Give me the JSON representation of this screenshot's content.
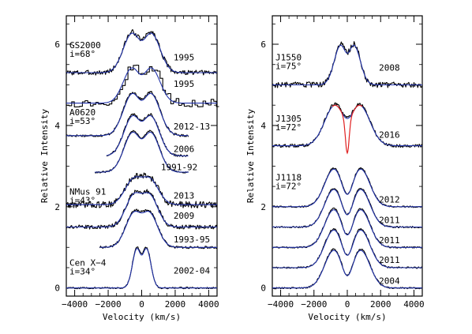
{
  "chart_data": [
    {
      "type": "line",
      "panel": "left",
      "xlabel": "Velocity (km/s)",
      "ylabel": "Relative Intensity",
      "xlim": [
        -4500,
        4500
      ],
      "ylim": [
        -0.2,
        6.7
      ],
      "xticks": [
        -4000,
        -2000,
        0,
        2000,
        4000
      ],
      "xtick_labels": [
        "−4000",
        "−2000",
        "0",
        "2000",
        "4000"
      ],
      "yticks": [
        0,
        2,
        4,
        6
      ],
      "ytick_labels": [
        "0",
        "2",
        "4",
        "6"
      ],
      "objects": [
        {
          "name": "GS2000",
          "incl": "i=68°",
          "label_y": 5.9
        },
        {
          "name": "A0620",
          "incl": "i=53°",
          "label_y": 4.25
        },
        {
          "name": "NMus 91",
          "incl": "i=43°",
          "label_y": 2.3
        },
        {
          "name": "Cen X−4",
          "incl": "i=34°",
          "label_y": 0.55
        }
      ],
      "spectra": [
        {
          "epoch": "1995",
          "base": 5.3,
          "kind": "double",
          "peak_v": 600,
          "width": 520,
          "amp": 0.95,
          "dip": 0.72,
          "noise": 0.06,
          "xrange": [
            -4500,
            4500
          ],
          "label_x": 1900,
          "label_y": 5.6
        },
        {
          "epoch": "1995",
          "base": 4.55,
          "kind": "double",
          "peak_v": 600,
          "width": 520,
          "amp": 0.85,
          "dip": 0.7,
          "noise": 0.1,
          "step": true,
          "xrange": [
            -4500,
            4500
          ],
          "label_x": 1900,
          "label_y": 4.95
        },
        {
          "epoch": "2012-13",
          "base": 3.75,
          "kind": "double",
          "peak_v": 580,
          "width": 540,
          "amp": 1.0,
          "dip": 0.62,
          "noise": 0.03,
          "xrange": [
            -4500,
            2800
          ],
          "label_x": 1900,
          "label_y": 3.9
        },
        {
          "epoch": "2006",
          "base": 3.25,
          "kind": "double",
          "peak_v": 560,
          "width": 520,
          "amp": 0.95,
          "dip": 0.68,
          "noise": 0.03,
          "xrange": [
            -2100,
            2800
          ],
          "label_x": 1900,
          "label_y": 3.35
        },
        {
          "epoch": "1991-92",
          "base": 2.85,
          "kind": "double",
          "peak_v": 560,
          "width": 520,
          "amp": 0.95,
          "dip": 0.62,
          "noise": 0.02,
          "xrange": [
            -2800,
            2800
          ],
          "label_x": 1150,
          "label_y": 2.9
        },
        {
          "epoch": "2013",
          "base": 2.05,
          "kind": "double",
          "peak_v": 500,
          "width": 520,
          "amp": 0.6,
          "dip": 0.85,
          "noise": 0.08,
          "xrange": [
            -4500,
            4500
          ],
          "label_x": 1900,
          "label_y": 2.2
        },
        {
          "epoch": "2009",
          "base": 1.5,
          "kind": "double",
          "peak_v": 480,
          "width": 500,
          "amp": 0.75,
          "dip": 0.8,
          "noise": 0.05,
          "xrange": [
            -4500,
            4500
          ],
          "label_x": 1900,
          "label_y": 1.7
        },
        {
          "epoch": "1993-95",
          "base": 1.0,
          "kind": "double",
          "peak_v": 480,
          "width": 500,
          "amp": 0.8,
          "dip": 0.72,
          "noise": 0.03,
          "xrange": [
            -2500,
            4500
          ],
          "label_x": 1900,
          "label_y": 1.12
        },
        {
          "epoch": "2002-04",
          "base": 0.0,
          "kind": "double",
          "peak_v": 300,
          "width": 260,
          "amp": 0.95,
          "dip": 0.75,
          "noise": 0.02,
          "xrange": [
            -4500,
            4500
          ],
          "label_x": 1900,
          "label_y": 0.35
        }
      ]
    },
    {
      "type": "line",
      "panel": "right",
      "xlabel": "Velocity (km/s)",
      "ylabel": "Relative Intensity",
      "xlim": [
        -4500,
        4500
      ],
      "ylim": [
        -0.2,
        6.7
      ],
      "xticks": [
        -4000,
        -2000,
        0,
        2000,
        4000
      ],
      "xtick_labels": [
        "−4000",
        "−2000",
        "0",
        "2000",
        "4000"
      ],
      "yticks": [
        0,
        2,
        4,
        6
      ],
      "ytick_labels": [
        "0",
        "2",
        "4",
        "6"
      ],
      "objects": [
        {
          "name": "J1550",
          "incl": "i=75°",
          "label_y": 5.6
        },
        {
          "name": "J1305",
          "incl": "i=72°",
          "label_y": 4.1
        },
        {
          "name": "J1118",
          "incl": "i=72°",
          "label_y": 2.65
        }
      ],
      "spectra": [
        {
          "epoch": "2008",
          "base": 5.0,
          "kind": "double",
          "peak_v": 420,
          "width": 380,
          "amp": 0.95,
          "dip": 0.6,
          "noise": 0.07,
          "xrange": [
            -4500,
            4500
          ],
          "label_x": 1900,
          "label_y": 5.35
        },
        {
          "epoch": "2016",
          "base": 3.5,
          "kind": "double",
          "peak_v": 750,
          "width": 620,
          "amp": 1.0,
          "dip": 0.55,
          "noise": 0.04,
          "red_dip": true,
          "xrange": [
            -4500,
            4500
          ],
          "label_x": 1900,
          "label_y": 3.7
        },
        {
          "epoch": "2012",
          "base": 2.0,
          "kind": "double",
          "peak_v": 800,
          "width": 560,
          "amp": 0.95,
          "dip": 0.35,
          "noise": 0.02,
          "xrange": [
            -4500,
            4500
          ],
          "label_x": 1900,
          "label_y": 2.1
        },
        {
          "epoch": "2011",
          "base": 1.5,
          "kind": "double",
          "peak_v": 800,
          "width": 560,
          "amp": 0.95,
          "dip": 0.35,
          "noise": 0.02,
          "xrange": [
            -4500,
            4500
          ],
          "label_x": 1900,
          "label_y": 1.6
        },
        {
          "epoch": "2011",
          "base": 1.0,
          "kind": "double",
          "peak_v": 800,
          "width": 560,
          "amp": 0.95,
          "dip": 0.35,
          "noise": 0.02,
          "xrange": [
            -4500,
            4500
          ],
          "label_x": 1900,
          "label_y": 1.1
        },
        {
          "epoch": "2011",
          "base": 0.5,
          "kind": "double",
          "peak_v": 800,
          "width": 560,
          "amp": 0.95,
          "dip": 0.35,
          "noise": 0.02,
          "xrange": [
            -4500,
            4500
          ],
          "label_x": 1900,
          "label_y": 0.62
        },
        {
          "epoch": "2004",
          "base": 0.0,
          "kind": "double",
          "peak_v": 800,
          "width": 560,
          "amp": 0.95,
          "dip": 0.35,
          "noise": 0.02,
          "xrange": [
            -4500,
            4500
          ],
          "label_x": 1900,
          "label_y": 0.1
        }
      ]
    }
  ]
}
